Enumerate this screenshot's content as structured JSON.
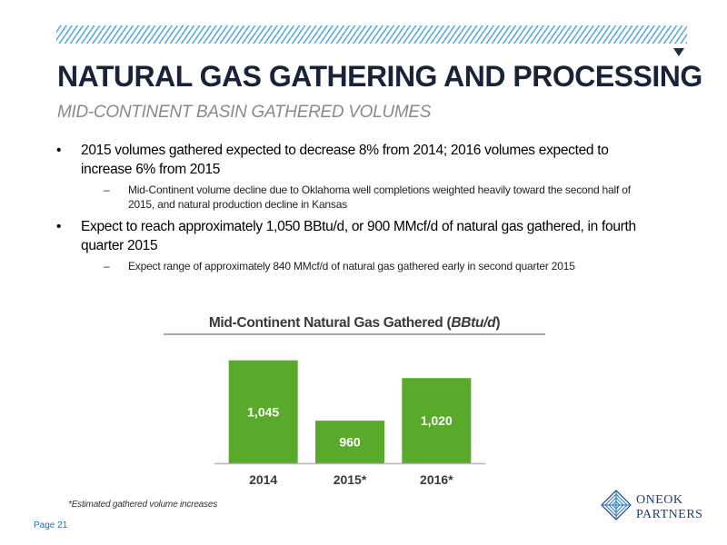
{
  "header": {
    "title": "NATURAL GAS GATHERING AND PROCESSING",
    "subtitle": "MID-CONTINENT BASIN GATHERED VOLUMES"
  },
  "bullets": [
    {
      "text": "2015 volumes gathered expected to decrease 8% from 2014; 2016 volumes expected to increase 6% from 2015",
      "sub": "Mid-Continent volume decline due to Oklahoma well completions weighted heavily toward the second half of 2015, and natural production decline in Kansas"
    },
    {
      "text": "Expect to reach approximately 1,050 BBtu/d, or 900 MMcf/d of natural gas gathered, in fourth quarter 2015",
      "sub": "Expect range of approximately 840 MMcf/d of natural gas gathered early in second quarter 2015"
    }
  ],
  "bullet_glyph": "•",
  "dash_glyph": "–",
  "chart_data": {
    "type": "bar",
    "title": "Mid-Continent Natural Gas Gathered (",
    "title_unit": "BBtu/d",
    "title_close": ")",
    "categories": [
      "2014",
      "2015*",
      "2016*"
    ],
    "values": [
      1045,
      960,
      1020
    ],
    "value_labels": [
      "1,045",
      "960",
      "1,020"
    ],
    "bar_color": "#59a92a",
    "value_label_color": "#ffffff",
    "ylim": [
      900,
      1060
    ],
    "grid": false,
    "legend": "none"
  },
  "footnote": "*Estimated gathered volume increases",
  "page_label": "Page 21",
  "logo": {
    "line1": "ONEOK",
    "line2": "PARTNERS",
    "color": "#1d3f7a"
  },
  "colors": {
    "accent": "#5aaede",
    "title": "#18233a",
    "subtitle": "#8a8a8a"
  },
  "icons": {
    "corner_arrow": "triangle-down-icon",
    "logo_mark": "oneok-logo-icon"
  }
}
